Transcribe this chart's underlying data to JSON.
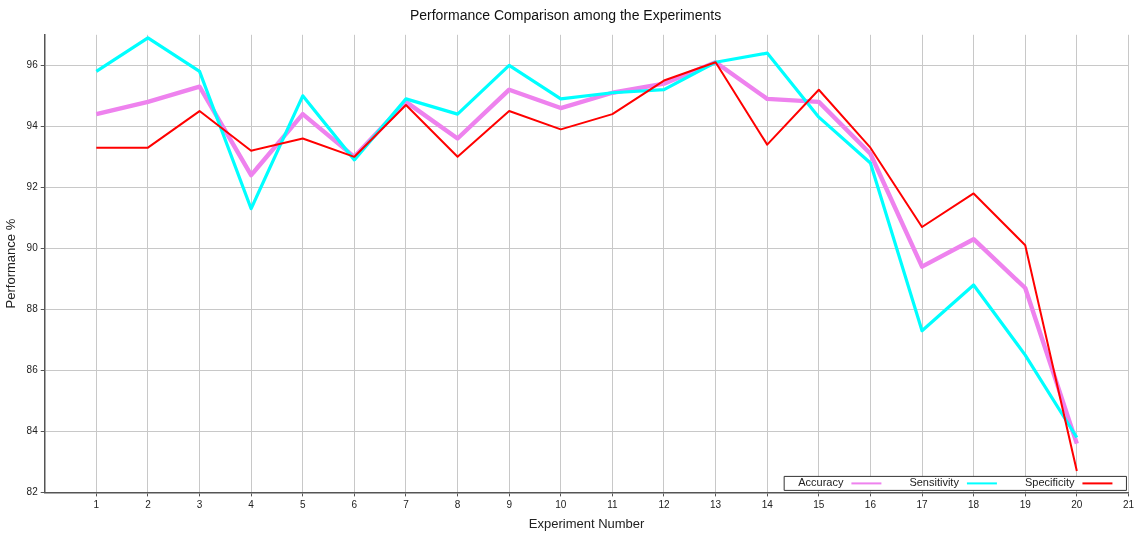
{
  "chart_data": {
    "type": "line",
    "title": "Performance Comparison among the Experiments",
    "xlabel": "Experiment Number",
    "ylabel": "Performance %",
    "x": [
      1,
      2,
      3,
      4,
      5,
      6,
      7,
      8,
      9,
      10,
      11,
      12,
      13,
      14,
      15,
      16,
      17,
      18,
      19,
      20
    ],
    "xlim": [
      0,
      21
    ],
    "xticks": [
      1,
      2,
      3,
      4,
      5,
      6,
      7,
      8,
      9,
      10,
      11,
      12,
      13,
      14,
      15,
      16,
      17,
      18,
      19,
      20,
      21
    ],
    "ylim": [
      82,
      97
    ],
    "yticks": [
      82,
      84,
      86,
      88,
      90,
      92,
      94,
      96
    ],
    "grid": true,
    "legend": "bottom right",
    "marker": "none",
    "line_style": "solid",
    "series": [
      {
        "name": "Accuracy",
        "color": "#ee82ee",
        "values": [
          94.4,
          94.8,
          95.3,
          92.4,
          94.4,
          93.0,
          94.8,
          93.6,
          95.2,
          94.6,
          95.1,
          95.4,
          96.1,
          94.9,
          94.8,
          93.1,
          89.4,
          90.3,
          88.7,
          83.6
        ]
      },
      {
        "name": "Sensitivity",
        "color": "#00ffff",
        "values": [
          95.8,
          96.9,
          95.8,
          91.3,
          95.0,
          92.9,
          94.9,
          94.4,
          96.0,
          94.9,
          95.1,
          95.2,
          96.1,
          96.4,
          94.3,
          92.8,
          87.3,
          88.8,
          86.5,
          83.8
        ]
      },
      {
        "name": "Specificity",
        "color": "#ff0000",
        "values": [
          93.3,
          93.3,
          94.5,
          93.2,
          93.6,
          93.0,
          94.7,
          93.0,
          94.5,
          93.9,
          94.4,
          95.5,
          96.1,
          93.4,
          95.2,
          93.3,
          90.7,
          91.8,
          90.1,
          82.7
        ]
      }
    ]
  }
}
